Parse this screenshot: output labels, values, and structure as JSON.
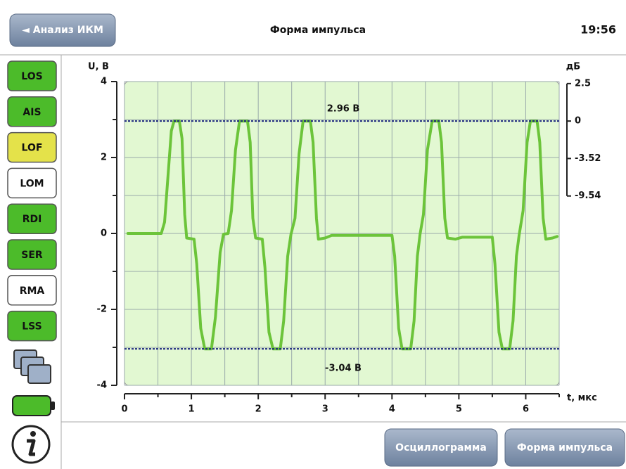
{
  "header": {
    "back_button": "◄ Анализ ИКМ",
    "title": "Форма импульса",
    "time": "19:56"
  },
  "sidebar": {
    "buttons": [
      {
        "label": "LOS",
        "color": "#4cbb2a"
      },
      {
        "label": "AIS",
        "color": "#4cbb2a"
      },
      {
        "label": "LOF",
        "color": "#e4e24a"
      },
      {
        "label": "LOM",
        "color": "#ffffff"
      },
      {
        "label": "RDI",
        "color": "#4cbb2a"
      },
      {
        "label": "SER",
        "color": "#4cbb2a"
      },
      {
        "label": "RMA",
        "color": "#ffffff"
      },
      {
        "label": "LSS",
        "color": "#4cbb2a"
      }
    ]
  },
  "footer": {
    "buttons": [
      "Осциллограмма",
      "Форма импульса"
    ]
  },
  "chart_data": {
    "type": "line",
    "ylabel": "U, В",
    "y2label": "дБ",
    "xlabel": "t, мкс",
    "xlim": [
      0,
      6.5
    ],
    "xticks": [
      0,
      1,
      2,
      3,
      4,
      5,
      6
    ],
    "ylim": [
      -4,
      4
    ],
    "yticks": [
      4,
      2,
      0,
      -2,
      -4
    ],
    "y2lim": [
      -9.54,
      2.5
    ],
    "y2ticks": [
      2.5,
      0,
      -3.52,
      -9.54
    ],
    "grid": true,
    "background": "#e2f8d2",
    "levels": {
      "color": "#1a237e",
      "values": [
        2.96,
        -3.04
      ],
      "value_labels": [
        "2.96 В",
        "-3.04 В"
      ]
    },
    "series": [
      {
        "color": "#6cc43a",
        "x": [
          0.05,
          0.55,
          0.6,
          0.65,
          0.7,
          0.74,
          0.82,
          0.86,
          0.9,
          0.93,
          1.04,
          1.08,
          1.14,
          1.2,
          1.3,
          1.36,
          1.43,
          1.48,
          1.55,
          1.6,
          1.66,
          1.72,
          1.84,
          1.88,
          1.92,
          1.96,
          2.06,
          2.1,
          2.16,
          2.22,
          2.33,
          2.38,
          2.44,
          2.49,
          2.55,
          2.61,
          2.67,
          2.78,
          2.82,
          2.87,
          2.9,
          3.0,
          3.1,
          4.0,
          4.04,
          4.1,
          4.15,
          4.28,
          4.33,
          4.38,
          4.42,
          4.47,
          4.53,
          4.6,
          4.7,
          4.74,
          4.79,
          4.83,
          4.95,
          5.05,
          5.5,
          5.54,
          5.6,
          5.65,
          5.76,
          5.81,
          5.86,
          5.9,
          5.96,
          6.02,
          6.07,
          6.17,
          6.21,
          6.26,
          6.3,
          6.4,
          6.47
        ],
        "values": [
          0,
          0,
          0.3,
          1.5,
          2.7,
          2.96,
          2.96,
          2.5,
          0.5,
          -0.12,
          -0.15,
          -0.8,
          -2.5,
          -3.04,
          -3.04,
          -2.2,
          -0.5,
          -0.02,
          0,
          0.6,
          2.2,
          2.96,
          2.96,
          2.4,
          0.4,
          -0.12,
          -0.15,
          -0.9,
          -2.6,
          -3.04,
          -3.04,
          -2.3,
          -0.6,
          -0.02,
          0.4,
          2.1,
          2.96,
          2.96,
          2.4,
          0.4,
          -0.15,
          -0.12,
          -0.05,
          -0.05,
          -0.6,
          -2.5,
          -3.04,
          -3.04,
          -2.3,
          -0.6,
          -0.02,
          0.5,
          2.2,
          2.96,
          2.96,
          2.4,
          0.4,
          -0.12,
          -0.15,
          -0.1,
          -0.1,
          -0.8,
          -2.6,
          -3.04,
          -3.04,
          -2.3,
          -0.6,
          -0.05,
          0.6,
          2.4,
          2.96,
          2.96,
          2.4,
          0.4,
          -0.15,
          -0.12,
          -0.08
        ]
      }
    ]
  }
}
